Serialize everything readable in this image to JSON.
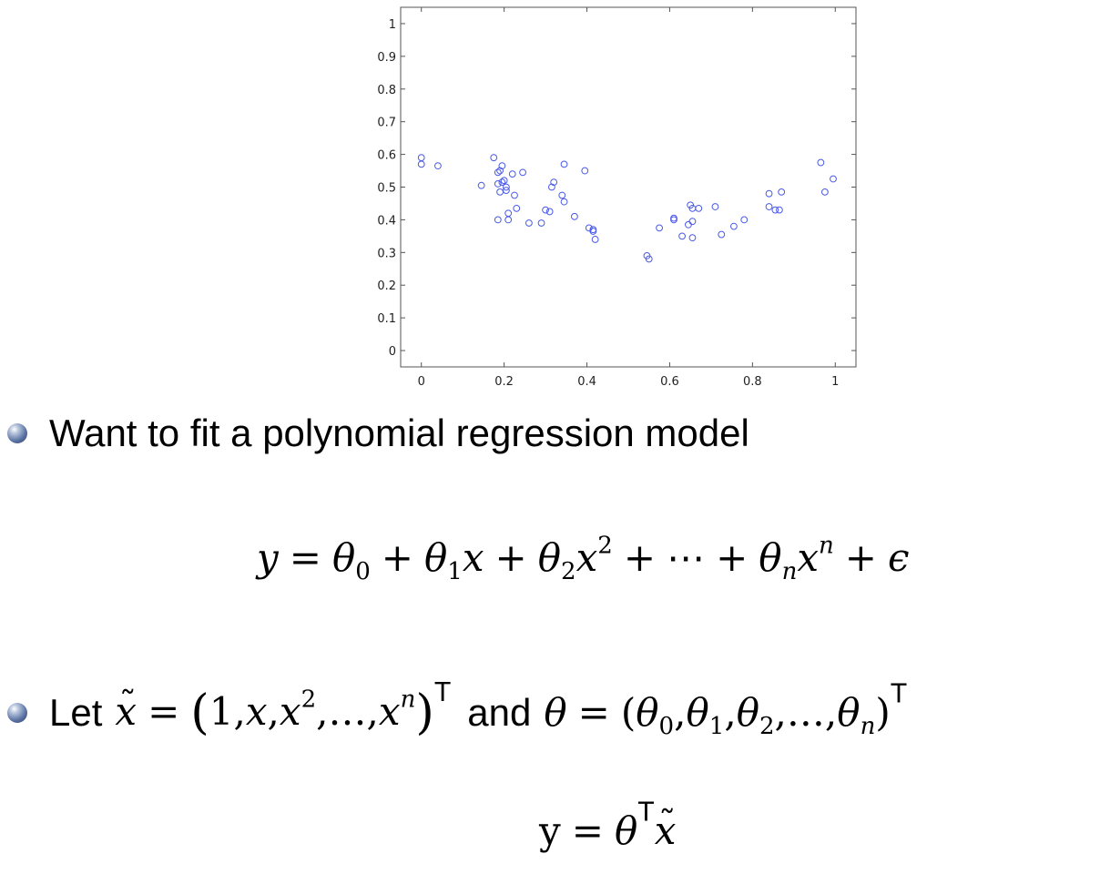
{
  "chart_data": {
    "type": "scatter",
    "title": "",
    "xlabel": "",
    "ylabel": "",
    "xlim": [
      -0.05,
      1.05
    ],
    "ylim": [
      -0.05,
      1.05
    ],
    "x_ticks": [
      0,
      0.2,
      0.4,
      0.6,
      0.8,
      1
    ],
    "x_tick_labels": [
      "0",
      "0.2",
      "0.4",
      "0.6",
      "0.8",
      "1"
    ],
    "y_ticks": [
      0,
      0.1,
      0.2,
      0.3,
      0.4,
      0.5,
      0.6,
      0.7,
      0.8,
      0.9,
      1
    ],
    "y_tick_labels": [
      "0",
      "0.1",
      "0.2",
      "0.3",
      "0.4",
      "0.5",
      "0.6",
      "0.7",
      "0.8",
      "0.9",
      "1"
    ],
    "grid": false,
    "marker": "open-circle",
    "marker_color": "#4a5ae8",
    "points": [
      [
        0.0,
        0.59
      ],
      [
        0.0,
        0.57
      ],
      [
        0.04,
        0.565
      ],
      [
        0.145,
        0.505
      ],
      [
        0.175,
        0.59
      ],
      [
        0.185,
        0.545
      ],
      [
        0.19,
        0.55
      ],
      [
        0.195,
        0.565
      ],
      [
        0.185,
        0.51
      ],
      [
        0.195,
        0.515
      ],
      [
        0.2,
        0.52
      ],
      [
        0.19,
        0.485
      ],
      [
        0.205,
        0.5
      ],
      [
        0.205,
        0.49
      ],
      [
        0.22,
        0.54
      ],
      [
        0.225,
        0.475
      ],
      [
        0.245,
        0.545
      ],
      [
        0.185,
        0.4
      ],
      [
        0.21,
        0.42
      ],
      [
        0.21,
        0.4
      ],
      [
        0.23,
        0.435
      ],
      [
        0.26,
        0.39
      ],
      [
        0.29,
        0.39
      ],
      [
        0.3,
        0.43
      ],
      [
        0.31,
        0.425
      ],
      [
        0.315,
        0.5
      ],
      [
        0.32,
        0.515
      ],
      [
        0.34,
        0.475
      ],
      [
        0.345,
        0.57
      ],
      [
        0.345,
        0.455
      ],
      [
        0.37,
        0.41
      ],
      [
        0.395,
        0.55
      ],
      [
        0.405,
        0.375
      ],
      [
        0.415,
        0.37
      ],
      [
        0.415,
        0.365
      ],
      [
        0.42,
        0.34
      ],
      [
        0.545,
        0.29
      ],
      [
        0.55,
        0.28
      ],
      [
        0.575,
        0.375
      ],
      [
        0.61,
        0.405
      ],
      [
        0.61,
        0.4
      ],
      [
        0.63,
        0.35
      ],
      [
        0.645,
        0.385
      ],
      [
        0.65,
        0.445
      ],
      [
        0.655,
        0.435
      ],
      [
        0.655,
        0.345
      ],
      [
        0.655,
        0.395
      ],
      [
        0.67,
        0.435
      ],
      [
        0.71,
        0.44
      ],
      [
        0.725,
        0.355
      ],
      [
        0.755,
        0.38
      ],
      [
        0.78,
        0.4
      ],
      [
        0.84,
        0.48
      ],
      [
        0.84,
        0.44
      ],
      [
        0.855,
        0.43
      ],
      [
        0.865,
        0.43
      ],
      [
        0.87,
        0.485
      ],
      [
        0.965,
        0.575
      ],
      [
        0.975,
        0.485
      ],
      [
        0.995,
        0.525
      ]
    ]
  },
  "bullets": {
    "first_text": "Want to fit a polynomial regression model",
    "second_prefix": "Let",
    "second_and": "and"
  },
  "equation_1": {
    "y": "y",
    "eq": "=",
    "theta": "θ",
    "sub0": "0",
    "sub1": "1",
    "sub2": "2",
    "subn": "n",
    "plus": "+",
    "x": "x",
    "sup2": "2",
    "supn": "n",
    "cdots": "⋯",
    "epsilon": "ϵ"
  },
  "equation_2": {
    "x": "x",
    "eq": "=",
    "one": "1",
    "comma": ",",
    "dots": "…",
    "sup2": "2",
    "supn": "n",
    "T": "T",
    "theta": "θ",
    "sub0": "0",
    "sub1": "1",
    "sub2": "2",
    "subn": "n",
    "lparen": "(",
    "rparen": ")"
  },
  "equation_3": {
    "y": "y",
    "eq": "=",
    "theta": "θ",
    "T": "T",
    "x": "x"
  }
}
